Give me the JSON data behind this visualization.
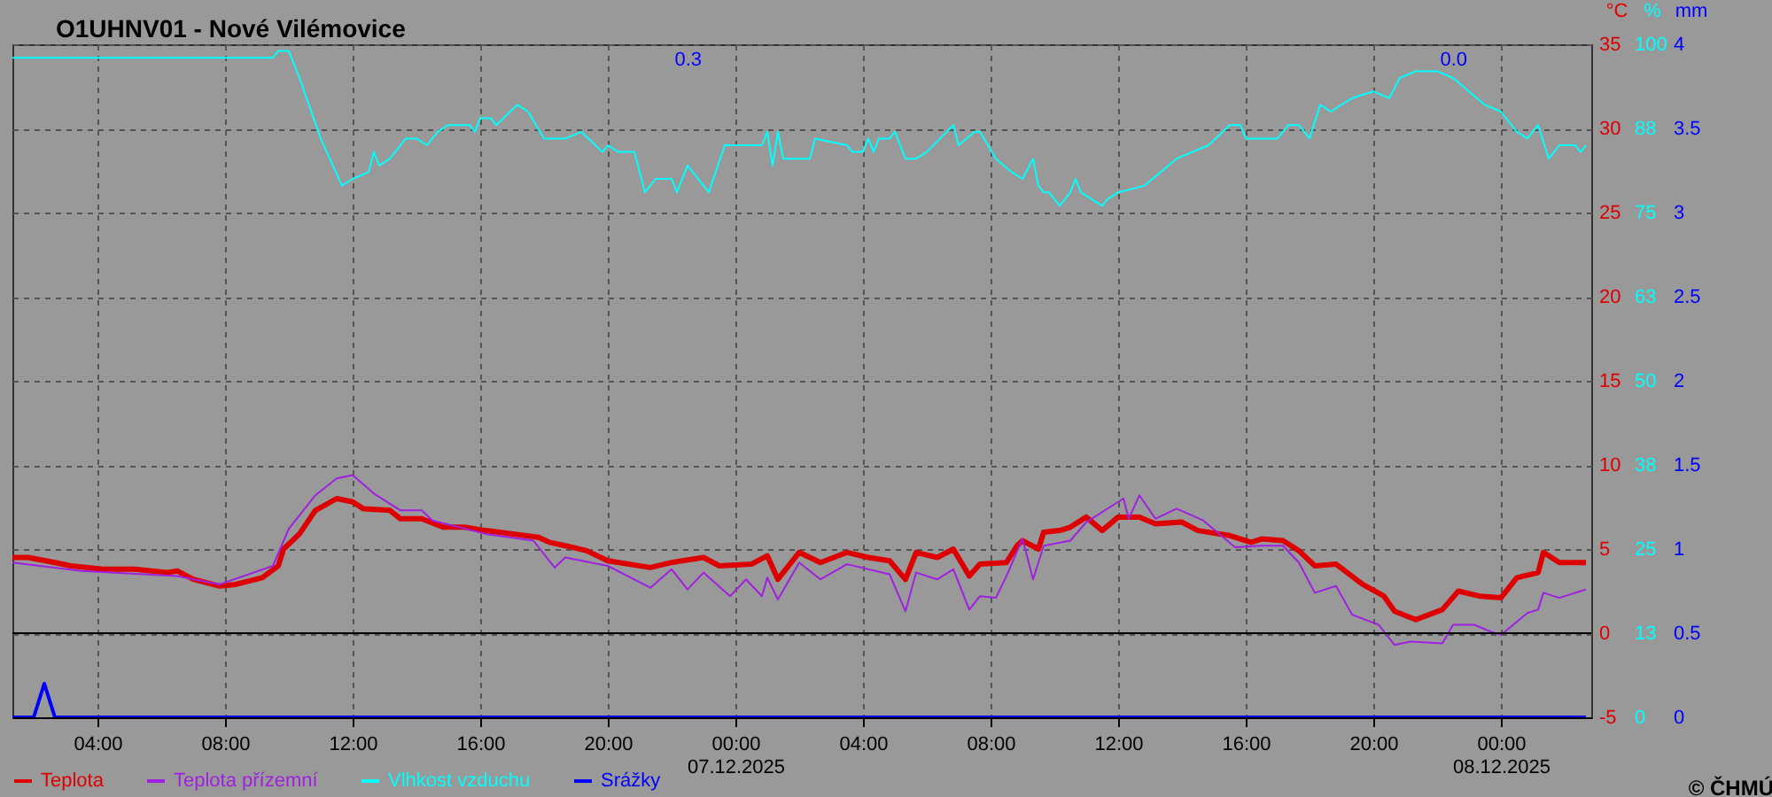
{
  "chart_data": {
    "type": "line",
    "title": "O1UHNV01 - Nové Vilémovice",
    "ylabel": "°C",
    "y2label": "%",
    "y3label": "mm",
    "xlim": [
      "2025-12-06T01:20",
      "2025-12-08T02:50"
    ],
    "xticks": [
      {
        "value": "2025-12-06T04:00",
        "label": "04:00"
      },
      {
        "value": "2025-12-06T08:00",
        "label": "08:00"
      },
      {
        "value": "2025-12-06T12:00",
        "label": "12:00"
      },
      {
        "value": "2025-12-06T16:00",
        "label": "16:00"
      },
      {
        "value": "2025-12-06T20:00",
        "label": "20:00"
      },
      {
        "value": "2025-12-07T00:00",
        "label": "00:00\n07.12.2025"
      },
      {
        "value": "2025-12-07T04:00",
        "label": "04:00"
      },
      {
        "value": "2025-12-07T08:00",
        "label": "08:00"
      },
      {
        "value": "2025-12-07T12:00",
        "label": "12:00"
      },
      {
        "value": "2025-12-07T16:00",
        "label": "16:00"
      },
      {
        "value": "2025-12-07T20:00",
        "label": "20:00"
      },
      {
        "value": "2025-12-08T00:00",
        "label": "00:00\n08.12.2025"
      }
    ],
    "ylim": [
      -5,
      35
    ],
    "yticks": [
      -5,
      0,
      5,
      10,
      15,
      20,
      25,
      30,
      35
    ],
    "y2lim": [
      0,
      100
    ],
    "y2ticks": [
      0,
      {
        "value": 12.5,
        "label": "13"
      },
      25,
      {
        "value": 37.5,
        "label": "38"
      },
      50,
      {
        "value": 62.5,
        "label": "63"
      },
      75,
      {
        "value": 87.5,
        "label": "88"
      },
      100
    ],
    "y3lim": [
      0,
      4
    ],
    "y3ticks": [
      0,
      0.5,
      1,
      1.5,
      2,
      2.5,
      3,
      3.5,
      4
    ],
    "grid": true,
    "legend": "bottom",
    "ref_lines": [
      {
        "axis": "y",
        "value": 0,
        "color": "#000000"
      }
    ],
    "annotations": [
      "0.3",
      "0.0",
      "© ČHMÚ"
    ],
    "series": [
      {
        "name": "Teplota",
        "color": "#dd0000",
        "x": [
          "2025-12-06T01:20",
          "2025-12-06T01:50",
          "2025-12-06T02:40",
          "2025-12-06T03:10",
          "2025-12-06T04:10",
          "2025-12-06T05:10",
          "2025-12-06T06:10",
          "2025-12-06T06:30",
          "2025-12-06T07:00",
          "2025-12-06T07:50",
          "2025-12-06T08:20",
          "2025-12-06T09:10",
          "2025-12-06T09:40",
          "2025-12-06T09:50",
          "2025-12-06T10:20",
          "2025-12-06T10:50",
          "2025-12-06T11:30",
          "2025-12-06T12:00",
          "2025-12-06T12:20",
          "2025-12-06T13:10",
          "2025-12-06T13:30",
          "2025-12-06T14:10",
          "2025-12-06T14:50",
          "2025-12-06T15:30",
          "2025-12-06T16:10",
          "2025-12-06T17:50",
          "2025-12-06T18:10",
          "2025-12-06T18:40",
          "2025-12-06T19:20",
          "2025-12-06T20:00",
          "2025-12-06T21:20",
          "2025-12-06T22:00",
          "2025-12-06T23:00",
          "2025-12-06T23:30",
          "2025-12-07T00:30",
          "2025-12-07T01:00",
          "2025-12-07T01:20",
          "2025-12-07T01:50",
          "2025-12-07T02:00",
          "2025-12-07T02:40",
          "2025-12-07T03:30",
          "2025-12-07T04:10",
          "2025-12-07T04:50",
          "2025-12-07T05:20",
          "2025-12-07T05:40",
          "2025-12-07T06:20",
          "2025-12-07T06:50",
          "2025-12-07T07:20",
          "2025-12-07T07:40",
          "2025-12-07T08:30",
          "2025-12-07T08:50",
          "2025-12-07T09:00",
          "2025-12-07T09:30",
          "2025-12-07T09:40",
          "2025-12-07T10:10",
          "2025-12-07T10:30",
          "2025-12-07T11:00",
          "2025-12-07T11:30",
          "2025-12-07T12:00",
          "2025-12-07T12:40",
          "2025-12-07T13:10",
          "2025-12-07T14:00",
          "2025-12-07T14:30",
          "2025-12-07T15:30",
          "2025-12-07T16:10",
          "2025-12-07T16:30",
          "2025-12-07T17:10",
          "2025-12-07T17:40",
          "2025-12-07T18:10",
          "2025-12-07T18:50",
          "2025-12-07T19:40",
          "2025-12-07T20:20",
          "2025-12-07T20:40",
          "2025-12-07T21:20",
          "2025-12-07T22:10",
          "2025-12-07T22:40",
          "2025-12-07T23:20",
          "2025-12-08T00:00",
          "2025-12-08T00:30",
          "2025-12-08T01:10",
          "2025-12-08T01:20",
          "2025-12-08T01:50",
          "2025-12-08T02:40"
        ],
        "values": [
          4.5,
          4.5,
          4.2,
          4.0,
          3.8,
          3.8,
          3.6,
          3.7,
          3.2,
          2.8,
          2.9,
          3.3,
          4.0,
          5.0,
          5.9,
          7.3,
          8.0,
          7.8,
          7.4,
          7.3,
          6.8,
          6.8,
          6.3,
          6.3,
          6.1,
          5.7,
          5.4,
          5.2,
          4.9,
          4.3,
          3.9,
          4.2,
          4.5,
          4.0,
          4.1,
          4.6,
          3.2,
          4.4,
          4.8,
          4.2,
          4.8,
          4.5,
          4.3,
          3.2,
          4.8,
          4.5,
          5.0,
          3.4,
          4.1,
          4.2,
          5.2,
          5.5,
          5.0,
          6.0,
          6.1,
          6.3,
          6.9,
          6.1,
          6.9,
          6.9,
          6.5,
          6.6,
          6.1,
          5.8,
          5.4,
          5.6,
          5.5,
          4.9,
          4.0,
          4.1,
          2.9,
          2.2,
          1.3,
          0.8,
          1.4,
          2.5,
          2.2,
          2.1,
          3.3,
          3.6,
          4.8,
          4.2,
          4.2
        ]
      },
      {
        "name": "Teplota přízemní",
        "color": "#a020e0",
        "x": [
          "2025-12-06T01:20",
          "2025-12-06T03:30",
          "2025-12-06T06:30",
          "2025-12-06T07:50",
          "2025-12-06T09:30",
          "2025-12-06T10:00",
          "2025-12-06T10:50",
          "2025-12-06T11:30",
          "2025-12-06T12:00",
          "2025-12-06T12:40",
          "2025-12-06T13:30",
          "2025-12-06T14:10",
          "2025-12-06T14:30",
          "2025-12-06T16:10",
          "2025-12-06T17:40",
          "2025-12-06T18:20",
          "2025-12-06T18:40",
          "2025-12-06T20:00",
          "2025-12-06T21:20",
          "2025-12-06T22:00",
          "2025-12-06T22:30",
          "2025-12-06T23:00",
          "2025-12-06T23:50",
          "2025-12-07T00:20",
          "2025-12-07T00:50",
          "2025-12-07T01:00",
          "2025-12-07T01:20",
          "2025-12-07T02:00",
          "2025-12-07T02:40",
          "2025-12-07T03:30",
          "2025-12-07T04:50",
          "2025-12-07T05:20",
          "2025-12-07T05:40",
          "2025-12-07T06:20",
          "2025-12-07T06:50",
          "2025-12-07T07:20",
          "2025-12-07T07:40",
          "2025-12-07T08:10",
          "2025-12-07T08:30",
          "2025-12-07T09:00",
          "2025-12-07T09:20",
          "2025-12-07T09:40",
          "2025-12-07T10:30",
          "2025-12-07T11:00",
          "2025-12-07T12:10",
          "2025-12-07T12:20",
          "2025-12-07T12:40",
          "2025-12-07T13:10",
          "2025-12-07T13:50",
          "2025-12-07T14:40",
          "2025-12-07T15:40",
          "2025-12-07T16:30",
          "2025-12-07T17:10",
          "2025-12-07T17:40",
          "2025-12-07T18:10",
          "2025-12-07T18:50",
          "2025-12-07T19:20",
          "2025-12-07T20:10",
          "2025-12-07T20:40",
          "2025-12-07T21:10",
          "2025-12-07T22:10",
          "2025-12-07T22:30",
          "2025-12-07T23:10",
          "2025-12-07T23:40",
          "2025-12-08T00:00",
          "2025-12-08T00:50",
          "2025-12-08T01:10",
          "2025-12-08T01:20",
          "2025-12-08T01:50",
          "2025-12-08T02:40"
        ],
        "values": [
          4.2,
          3.7,
          3.4,
          2.9,
          4.0,
          6.2,
          8.2,
          9.2,
          9.4,
          8.3,
          7.3,
          7.3,
          6.7,
          5.9,
          5.5,
          3.9,
          4.5,
          4.0,
          2.7,
          3.8,
          2.6,
          3.6,
          2.2,
          3.2,
          2.2,
          3.3,
          2.0,
          4.2,
          3.2,
          4.1,
          3.5,
          1.3,
          3.6,
          3.2,
          3.8,
          1.4,
          2.2,
          2.1,
          3.4,
          5.6,
          3.2,
          5.2,
          5.5,
          6.6,
          8.0,
          6.8,
          8.2,
          6.8,
          7.4,
          6.7,
          5.1,
          5.2,
          5.2,
          4.2,
          2.4,
          2.8,
          1.1,
          0.5,
          -0.7,
          -0.5,
          -0.6,
          0.5,
          0.5,
          0.1,
          -0.1,
          1.2,
          1.4,
          2.4,
          2.1,
          2.6
        ]
      },
      {
        "name": "Vlhkost vzduchu",
        "color": "#00ffff",
        "axis": "y2",
        "x": [
          "2025-12-06T01:20",
          "2025-12-06T09:30",
          "2025-12-06T09:40",
          "2025-12-06T10:00",
          "2025-12-06T10:20",
          "2025-12-06T11:00",
          "2025-12-06T11:40",
          "2025-12-06T12:00",
          "2025-12-06T12:30",
          "2025-12-06T12:40",
          "2025-12-06T12:50",
          "2025-12-06T13:10",
          "2025-12-06T13:40",
          "2025-12-06T14:00",
          "2025-12-06T14:20",
          "2025-12-06T14:40",
          "2025-12-06T15:00",
          "2025-12-06T15:40",
          "2025-12-06T15:50",
          "2025-12-06T16:00",
          "2025-12-06T16:20",
          "2025-12-06T16:30",
          "2025-12-06T17:10",
          "2025-12-06T17:30",
          "2025-12-06T18:00",
          "2025-12-06T18:40",
          "2025-12-06T19:10",
          "2025-12-06T19:50",
          "2025-12-06T20:00",
          "2025-12-06T20:20",
          "2025-12-06T20:50",
          "2025-12-06T21:10",
          "2025-12-06T21:30",
          "2025-12-06T22:00",
          "2025-12-06T22:10",
          "2025-12-06T22:30",
          "2025-12-06T23:10",
          "2025-12-06T23:40",
          "2025-12-07T00:00",
          "2025-12-07T00:50",
          "2025-12-07T01:00",
          "2025-12-07T01:10",
          "2025-12-07T01:20",
          "2025-12-07T01:30",
          "2025-12-07T02:00",
          "2025-12-07T02:20",
          "2025-12-07T02:30",
          "2025-12-07T03:30",
          "2025-12-07T03:40",
          "2025-12-07T04:00",
          "2025-12-07T04:10",
          "2025-12-07T04:20",
          "2025-12-07T04:30",
          "2025-12-07T04:50",
          "2025-12-07T05:00",
          "2025-12-07T05:10",
          "2025-12-07T05:20",
          "2025-12-07T05:40",
          "2025-12-07T06:00",
          "2025-12-07T06:50",
          "2025-12-07T07:00",
          "2025-12-07T07:30",
          "2025-12-07T07:40",
          "2025-12-07T08:10",
          "2025-12-07T08:40",
          "2025-12-07T09:00",
          "2025-12-07T09:20",
          "2025-12-07T09:30",
          "2025-12-07T09:40",
          "2025-12-07T09:50",
          "2025-12-07T10:10",
          "2025-12-07T10:30",
          "2025-12-07T10:40",
          "2025-12-07T10:50",
          "2025-12-07T11:10",
          "2025-12-07T11:30",
          "2025-12-07T11:40",
          "2025-12-07T12:00",
          "2025-12-07T12:50",
          "2025-12-07T13:50",
          "2025-12-07T14:50",
          "2025-12-07T15:30",
          "2025-12-07T15:50",
          "2025-12-07T16:00",
          "2025-12-07T16:30",
          "2025-12-07T17:00",
          "2025-12-07T17:20",
          "2025-12-07T17:40",
          "2025-12-07T18:00",
          "2025-12-07T18:20",
          "2025-12-07T18:40",
          "2025-12-07T19:20",
          "2025-12-07T20:00",
          "2025-12-07T20:30",
          "2025-12-07T20:50",
          "2025-12-07T21:20",
          "2025-12-07T22:00",
          "2025-12-07T22:30",
          "2025-12-07T23:00",
          "2025-12-07T23:30",
          "2025-12-08T00:00",
          "2025-12-08T00:30",
          "2025-12-08T00:50",
          "2025-12-08T01:10",
          "2025-12-08T01:30",
          "2025-12-08T01:50",
          "2025-12-08T02:20",
          "2025-12-08T02:30",
          "2025-12-08T02:40"
        ],
        "values": [
          98,
          98,
          99,
          99,
          95,
          86,
          79,
          80,
          81,
          84,
          82,
          83,
          86,
          86,
          85,
          87,
          88,
          88,
          87,
          89,
          89,
          88,
          91,
          90,
          86,
          86,
          87,
          84,
          85,
          84,
          84,
          78,
          80,
          80,
          78,
          82,
          78,
          85,
          85,
          85,
          87,
          82,
          87,
          83,
          83,
          83,
          86,
          85,
          84,
          84,
          86,
          84,
          86,
          86,
          87,
          85,
          83,
          83,
          84,
          88,
          85,
          87,
          87,
          83,
          81,
          80,
          83,
          79,
          78,
          78,
          76,
          78,
          80,
          78,
          77,
          76,
          77,
          78,
          79,
          83,
          85,
          88,
          88,
          86,
          86,
          86,
          88,
          88,
          86,
          91,
          90,
          92,
          93,
          92,
          95,
          96,
          96,
          95,
          93,
          91,
          90,
          87,
          86,
          88,
          83,
          85,
          85,
          84,
          85
        ]
      },
      {
        "name": "Srážky",
        "color": "#0000ff",
        "axis": "y3",
        "x": [
          "2025-12-06T01:20",
          "2025-12-06T02:00",
          "2025-12-06T02:20",
          "2025-12-06T02:40",
          "2025-12-08T02:40"
        ],
        "values": [
          0,
          0,
          0.2,
          0,
          0
        ]
      }
    ]
  }
}
